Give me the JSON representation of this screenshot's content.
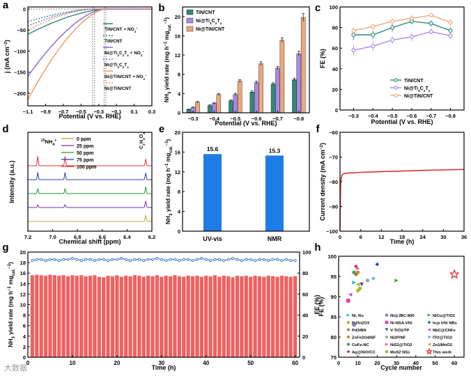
{
  "watermark": "大数据",
  "chart_data": [
    {
      "panel": "a",
      "type": "line",
      "xlabel": "Potential (V vs. RHE)",
      "ylabel": "j (mA cm-2)",
      "xlim": [
        -1.1,
        0.3
      ],
      "ylim": [
        -230,
        5
      ],
      "xticks": [
        -1.1,
        -0.9,
        -0.7,
        -0.5,
        -0.3,
        -0.1,
        0.1,
        0.3
      ],
      "yticks": [
        0,
        -50,
        -100,
        -150,
        -200
      ],
      "legend_position": "right",
      "series": [
        {
          "name": "TiN/CNT + NO2-",
          "color": "#2a8a7a",
          "dashed": false,
          "onset": -0.22,
          "end_current": -60
        },
        {
          "name": "TiN/CNT",
          "color": "#2a8a7a",
          "dashed": true,
          "onset": -0.35,
          "end_current": -30
        },
        {
          "name": "Ni@Ti3C2Tx + NO2-",
          "color": "#8a63d2",
          "dashed": false,
          "onset": -0.24,
          "end_current": -160
        },
        {
          "name": "Ni@Ti3C2Tx",
          "color": "#8a63d2",
          "dashed": true,
          "onset": -0.36,
          "end_current": -40
        },
        {
          "name": "Ni@TiN/CNT + NO2-",
          "color": "#e59a62",
          "dashed": false,
          "onset": -0.22,
          "end_current": -215
        },
        {
          "name": "Ni@TiN/CNT",
          "color": "#e59a62",
          "dashed": true,
          "onset": -0.37,
          "end_current": -50
        }
      ],
      "vlines": [
        -0.37,
        -0.35,
        -0.24,
        -0.22
      ]
    },
    {
      "panel": "b",
      "type": "bar",
      "xlabel": "Potential (V vs. RHE)",
      "ylabel": "NH3 yield rate (mg h-1 mgcat.-1)",
      "categories": [
        "-0.3",
        "-0.4",
        "-0.5",
        "-0.6",
        "-0.7",
        "-0.8"
      ],
      "ylim": [
        0,
        22
      ],
      "yticks": [
        0,
        4,
        8,
        12,
        16,
        20
      ],
      "legend_position": "top-left",
      "series": [
        {
          "name": "TiN/CNT",
          "color": "#2f8a7a",
          "values": [
            0.7,
            1.5,
            2.5,
            4.3,
            6.0,
            6.9
          ],
          "errors": [
            0.1,
            0.15,
            0.2,
            0.25,
            0.25,
            0.3
          ]
        },
        {
          "name": "Ni@Ti3C2Tx",
          "color": "#a889e6",
          "values": [
            1.1,
            2.0,
            3.8,
            6.3,
            9.3,
            12.3
          ],
          "errors": [
            0.1,
            0.15,
            0.25,
            0.3,
            0.35,
            0.5
          ]
        },
        {
          "name": "Ni@TiN/CNT",
          "color": "#eca87a",
          "values": [
            2.2,
            3.8,
            6.6,
            10.2,
            15.1,
            19.8
          ],
          "errors": [
            0.15,
            0.2,
            0.3,
            0.4,
            0.5,
            0.8
          ]
        }
      ]
    },
    {
      "panel": "c",
      "type": "line",
      "xlabel": "Potential (V vs. RHE)",
      "ylabel": "FE (%)",
      "categories": [
        "-0.3",
        "-0.4",
        "-0.5",
        "-0.6",
        "-0.7",
        "-0.8"
      ],
      "ylim": [
        0,
        100
      ],
      "yticks": [
        0,
        20,
        40,
        60,
        80,
        100
      ],
      "legend_position": "bottom-right",
      "series": [
        {
          "name": "TiN/CNT",
          "color": "#2f8a7a",
          "values": [
            73,
            73,
            80,
            86,
            84,
            77
          ],
          "errors": [
            5,
            4,
            4,
            3,
            3,
            3
          ]
        },
        {
          "name": "Ni@Ti3C2Tx",
          "color": "#a889e6",
          "values": [
            58,
            62,
            68,
            71,
            76,
            72
          ],
          "errors": [
            5,
            5,
            4,
            4,
            3,
            3
          ]
        },
        {
          "name": "Ni@TiN/CNT",
          "color": "#eca87a",
          "values": [
            77,
            81,
            86,
            89,
            92,
            85
          ],
          "errors": [
            3,
            3,
            3,
            3,
            2,
            3
          ]
        }
      ]
    },
    {
      "panel": "d",
      "type": "line",
      "xlabel": "Chemical shift (ppm)",
      "ylabel": "Intensity (a.u.)",
      "xlim": [
        7.2,
        6.2
      ],
      "xticks": [
        7.2,
        7.0,
        6.8,
        6.6,
        6.4,
        6.2
      ],
      "annotations": [
        "15NH4+",
        "C2H2O4"
      ],
      "legend_position": "top-right",
      "peaks_ppm": [
        7.12,
        6.9,
        6.25
      ],
      "series": [
        {
          "name": "0 ppm",
          "color": "#b8a830",
          "peak_height": [
            0.02,
            0.02,
            0.6
          ]
        },
        {
          "name": "25 ppm",
          "color": "#7a2fa0",
          "peak_height": [
            0.25,
            0.25,
            0.6
          ]
        },
        {
          "name": "50 ppm",
          "color": "#1c9a2c",
          "peak_height": [
            0.45,
            0.45,
            0.6
          ]
        },
        {
          "name": "75 ppm",
          "color": "#1f3fa8",
          "peak_height": [
            0.65,
            0.65,
            0.6
          ]
        },
        {
          "name": "100 ppm",
          "color": "#e03030",
          "peak_height": [
            0.85,
            0.85,
            0.6
          ]
        }
      ]
    },
    {
      "panel": "e",
      "type": "bar",
      "ylabel": "NH3 yield rate (mg h-1 mgcat.-1)",
      "categories": [
        "UV-vis",
        "NMR"
      ],
      "values": [
        15.6,
        15.3
      ],
      "data_labels": [
        "15.6",
        "15.3"
      ],
      "ylim": [
        0,
        20
      ],
      "yticks": [
        0,
        4,
        8,
        12,
        16,
        20
      ],
      "color": "#1e7ce6"
    },
    {
      "panel": "f",
      "type": "line",
      "xlabel": "Time (h)",
      "ylabel": "Current density (mA cm-2)",
      "xlim": [
        0,
        36
      ],
      "ylim": [
        -100,
        -60
      ],
      "xticks": [
        0,
        6,
        12,
        18,
        24,
        30,
        36
      ],
      "yticks": [
        -60,
        -70,
        -80,
        -90,
        -100
      ],
      "color": "#e03030",
      "x": [
        0,
        0.05,
        0.2,
        0.5,
        1,
        2,
        4,
        6,
        8,
        12,
        18,
        24,
        30,
        36
      ],
      "y": [
        -100,
        -92,
        -80,
        -77.5,
        -76.8,
        -76.5,
        -76.4,
        -76.2,
        -76.1,
        -75.9,
        -75.7,
        -75.4,
        -75.2,
        -75.0
      ]
    },
    {
      "panel": "g",
      "type": "bar",
      "xlabel": "Time (h)",
      "ylabel": "NH3 yield rate (mg h-1 mgcat.-1)",
      "y2label": "FE (%)",
      "xlim": [
        0,
        61
      ],
      "ylim": [
        0,
        20
      ],
      "y2lim": [
        0,
        100
      ],
      "xticks": [
        0,
        10,
        20,
        30,
        40,
        50,
        60
      ],
      "yticks": [
        0,
        2,
        4,
        6,
        8,
        10,
        12,
        14,
        16,
        18,
        20
      ],
      "y2ticks": [
        0,
        20,
        40,
        60,
        80,
        100
      ],
      "bar_color": "#f06060",
      "line_color": "#2a6fc0",
      "bars": [
        15.6,
        15.7,
        15.6,
        15.5,
        15.7,
        15.6,
        15.5,
        15.6,
        15.4,
        15.6,
        15.5,
        15.6,
        15.4,
        15.5,
        15.6,
        15.3,
        15.2,
        15.5,
        15.4,
        15.6,
        15.3,
        15.5,
        15.4,
        15.6,
        15.5,
        15.3,
        15.5,
        15.4,
        15.6,
        15.3,
        15.5,
        15.4,
        15.6,
        15.4,
        15.3,
        15.5,
        15.4,
        15.5,
        15.3,
        15.5,
        15.4,
        15.6,
        15.3,
        15.5,
        15.4,
        15.2,
        15.5,
        15.4,
        15.5,
        15.3,
        15.5,
        15.4,
        15.3,
        15.5,
        15.4,
        15.3,
        15.5,
        15.4,
        15.3,
        15.4
      ],
      "fe_line": [
        92,
        93,
        93,
        92,
        93,
        93,
        92,
        93,
        93,
        94,
        93,
        92,
        93,
        93,
        92,
        93,
        93,
        92,
        93,
        93,
        94,
        93,
        92,
        93,
        93,
        92,
        93,
        93,
        94,
        93,
        92,
        93,
        93,
        92,
        93,
        93,
        92,
        93,
        94,
        93,
        92,
        93,
        93,
        92,
        93,
        94,
        93,
        92,
        93,
        93,
        92,
        93,
        93,
        92,
        93,
        93,
        92,
        93,
        92,
        92
      ]
    },
    {
      "panel": "h",
      "type": "scatter",
      "xlabel": "Cycle number",
      "ylabel": "FE (%)",
      "xlim": [
        0,
        65
      ],
      "ylim": [
        75,
        100
      ],
      "xticks": [
        0,
        10,
        20,
        30,
        40,
        50,
        60
      ],
      "yticks": [
        75,
        80,
        85,
        90,
        95,
        100
      ],
      "legend_position": "bottom",
      "series": [
        {
          "name": "Ni, Ru",
          "color": "#27b8c8",
          "marker": "triangle-right",
          "x": [
            8
          ],
          "y": [
            93.5
          ]
        },
        {
          "name": "Pd/In2O3",
          "color": "#c8b030",
          "marker": "circle",
          "x": [
            10
          ],
          "y": [
            91.5
          ]
        },
        {
          "name": "Pd3/BN",
          "color": "#9a7840",
          "marker": "pentagon",
          "x": [
            9
          ],
          "y": [
            95.5
          ]
        },
        {
          "name": "ZnFe2O4/NF",
          "color": "#e08020",
          "marker": "hexagon",
          "x": [
            10
          ],
          "y": [
            96
          ]
        },
        {
          "name": "CoFe-NC",
          "color": "#50a060",
          "marker": "circle",
          "x": [
            8
          ],
          "y": [
            96
          ]
        },
        {
          "name": "Ag@NiO/CC",
          "color": "#d02060",
          "marker": "diamond",
          "x": [
            9
          ],
          "y": [
            97.5
          ]
        },
        {
          "name": "Ni@JBC-800",
          "color": "#9080c0",
          "marker": "circle",
          "x": [
            8
          ],
          "y": [
            83
          ]
        },
        {
          "name": "Ni-NSA-VNi",
          "color": "#e040b0",
          "marker": "square",
          "x": [
            5
          ],
          "y": [
            89
          ]
        },
        {
          "name": "V-TiO2/TP",
          "color": "#3050b0",
          "marker": "triangle-down",
          "x": [
            12
          ],
          "y": [
            93
          ]
        },
        {
          "name": "Ni2P/NF",
          "color": "#a0a0a0",
          "marker": "hexagon",
          "x": [
            15
          ],
          "y": [
            94
          ]
        },
        {
          "name": "NiS2@TiO2",
          "color": "#e06090",
          "marker": "triangle-right",
          "x": [
            10
          ],
          "y": [
            97
          ]
        },
        {
          "name": "MoS2 NSs",
          "color": "#90c040",
          "marker": "circle",
          "x": [
            11
          ],
          "y": [
            92
          ]
        },
        {
          "name": "NiCu@TiO2",
          "color": "#4aa050",
          "marker": "triangle-right",
          "x": [
            30
          ],
          "y": [
            94
          ]
        },
        {
          "name": "hcp IrNi NBs",
          "color": "#2050c0",
          "marker": "diamond",
          "x": [
            20
          ],
          "y": [
            98
          ]
        },
        {
          "name": "NbC@CNFs",
          "color": "#a060d0",
          "marker": "triangle-left",
          "x": [
            6
          ],
          "y": [
            90.5
          ]
        },
        {
          "name": "ITO@TiO2",
          "color": "#70b0e0",
          "marker": "diamond",
          "x": [
            18
          ],
          "y": [
            94.5
          ]
        },
        {
          "name": "Zn1/MnO2",
          "color": "#e0a020",
          "marker": "triangle-left",
          "x": [
            10
          ],
          "y": [
            93
          ]
        },
        {
          "name": "This work",
          "color": "#e03030",
          "marker": "star",
          "x": [
            60
          ],
          "y": [
            95.5
          ]
        }
      ]
    }
  ]
}
